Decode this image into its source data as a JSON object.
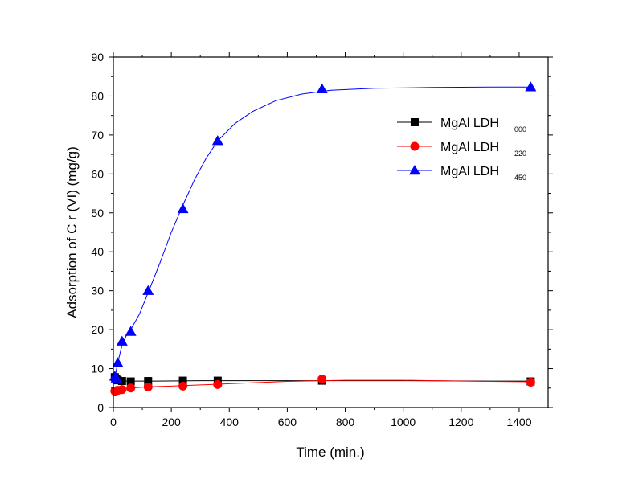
{
  "chart_data": {
    "type": "scatter",
    "title": "",
    "xlabel": "Time (min.)",
    "ylabel": "Adsorption of C r (VI) (mg/g)",
    "xlim": [
      0,
      1500
    ],
    "ylim": [
      0,
      90
    ],
    "xticks": [
      0,
      200,
      400,
      600,
      800,
      1000,
      1200,
      1400
    ],
    "yticks": [
      0,
      10,
      20,
      30,
      40,
      50,
      60,
      70,
      80,
      90
    ],
    "grid": false,
    "legend_position": "upper-right",
    "series": [
      {
        "name": "MgAl LDH",
        "subscript": "000",
        "color": "#000000",
        "marker": "square",
        "x": [
          5,
          10,
          15,
          30,
          60,
          120,
          240,
          360,
          720,
          1440
        ],
        "y": [
          7.8,
          7.3,
          7.0,
          6.8,
          6.7,
          6.8,
          6.9,
          6.9,
          6.9,
          6.7
        ],
        "fit_x": [
          0,
          5,
          10,
          20,
          40,
          80,
          150,
          300,
          500,
          720,
          1000,
          1300,
          1440
        ],
        "fit_y": [
          6.8,
          6.8,
          6.8,
          6.8,
          6.8,
          6.8,
          6.8,
          6.9,
          6.9,
          6.9,
          6.9,
          6.8,
          6.8
        ]
      },
      {
        "name": "MgAl LDH",
        "subscript": "220",
        "color": "#ff0000",
        "marker": "circle",
        "x": [
          5,
          10,
          15,
          30,
          60,
          120,
          240,
          360,
          720,
          1440
        ],
        "y": [
          4.2,
          4.3,
          4.4,
          4.6,
          5.0,
          5.3,
          5.5,
          5.9,
          7.3,
          6.5
        ],
        "fit_x": [
          0,
          5,
          10,
          20,
          40,
          80,
          120,
          200,
          300,
          400,
          600,
          800,
          1000,
          1200,
          1440
        ],
        "fit_y": [
          4.0,
          4.2,
          4.3,
          4.5,
          4.8,
          5.1,
          5.3,
          5.5,
          5.8,
          6.1,
          6.7,
          7.0,
          7.0,
          6.8,
          6.6
        ]
      },
      {
        "name": "MgAl LDH",
        "subscript": "450",
        "color": "#0000ff",
        "marker": "triangle",
        "x": [
          5,
          10,
          15,
          30,
          60,
          120,
          240,
          360,
          720,
          1440
        ],
        "y": [
          8.0,
          7.5,
          11.5,
          17.0,
          19.5,
          30.0,
          51.0,
          68.5,
          81.8,
          82.3
        ],
        "fit_x": [
          0,
          5,
          10,
          20,
          30,
          45,
          60,
          90,
          120,
          160,
          200,
          240,
          280,
          320,
          360,
          420,
          480,
          560,
          650,
          750,
          900,
          1100,
          1300,
          1440
        ],
        "fit_y": [
          6.5,
          7.5,
          9.5,
          13.0,
          16.0,
          18.5,
          20.0,
          24.0,
          29.5,
          37.0,
          45.0,
          52.0,
          58.5,
          64.0,
          68.5,
          73.0,
          76.0,
          78.8,
          80.5,
          81.5,
          82.0,
          82.2,
          82.3,
          82.3
        ]
      }
    ]
  }
}
